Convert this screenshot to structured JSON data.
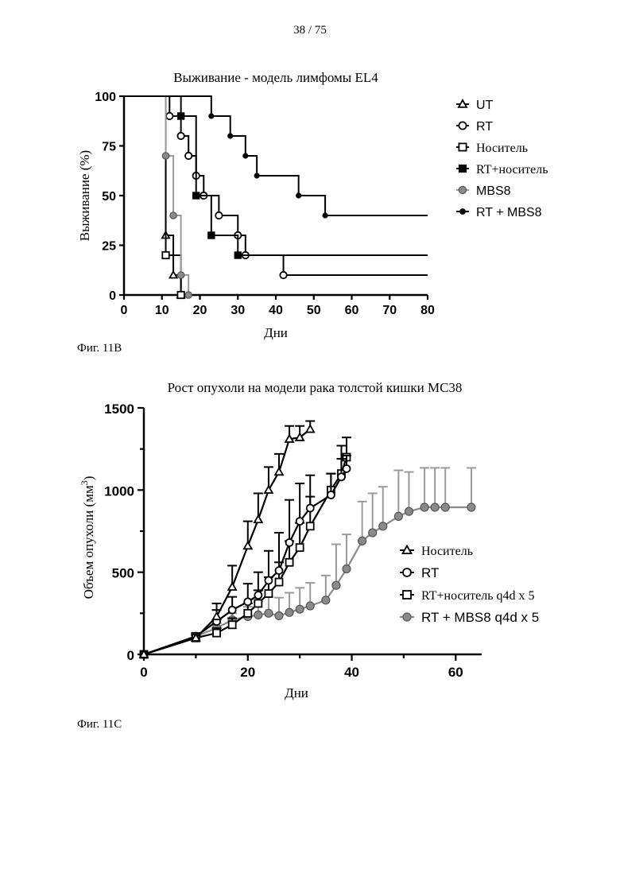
{
  "page_number": "38 / 75",
  "figures": {
    "fig11b_caption": "Фиг. 11B",
    "fig11c_caption": "Фиг. 11C"
  },
  "chart_data": [
    {
      "type": "line",
      "subtype": "kaplan-meier-step",
      "title": "Выживание - модель лимфомы EL4",
      "xlabel": "Дни",
      "ylabel": "Выживание (%)",
      "xlim": [
        0,
        80
      ],
      "ylim": [
        0,
        100
      ],
      "xticks": [
        0,
        10,
        20,
        30,
        40,
        50,
        60,
        70,
        80
      ],
      "yticks": [
        0,
        25,
        50,
        75,
        100
      ],
      "grid": false,
      "legend_position": "right",
      "series": [
        {
          "name": "UT",
          "marker": "triangle-open",
          "color": "#000000",
          "x": [
            0,
            11,
            13,
            15
          ],
          "y": [
            100,
            30,
            10,
            0
          ]
        },
        {
          "name": "RT",
          "marker": "circle-open",
          "color": "#000000",
          "x": [
            0,
            12,
            15,
            17,
            19,
            21,
            25,
            30,
            32,
            42,
            80
          ],
          "y": [
            100,
            90,
            80,
            70,
            60,
            50,
            40,
            30,
            20,
            10,
            10
          ]
        },
        {
          "name": "Носитель",
          "marker": "square-open",
          "color": "#000000",
          "x": [
            0,
            11,
            15
          ],
          "y": [
            100,
            20,
            0
          ]
        },
        {
          "name": "RT+носитель",
          "marker": "square-filled",
          "color": "#000000",
          "x": [
            0,
            15,
            19,
            23,
            30,
            80
          ],
          "y": [
            100,
            90,
            50,
            30,
            20,
            20
          ]
        },
        {
          "name": "MBS8",
          "marker": "circle-gray",
          "color": "#9a9a9a",
          "x": [
            0,
            11,
            13,
            15,
            17
          ],
          "y": [
            100,
            70,
            40,
            10,
            0
          ]
        },
        {
          "name": "RT + MBS8",
          "marker": "circle-filled",
          "color": "#000000",
          "x": [
            0,
            23,
            28,
            32,
            35,
            46,
            53,
            80
          ],
          "y": [
            100,
            90,
            80,
            70,
            60,
            50,
            40,
            40
          ]
        }
      ]
    },
    {
      "type": "line",
      "subtype": "errorbar",
      "title": "Рост опухоли на модели рака толстой кишки MC38",
      "xlabel": "Дни",
      "ylabel": "Объем опухоли (мм",
      "ylabel_sup": "3",
      "ylabel_close": ")",
      "xlim": [
        0,
        65
      ],
      "ylim": [
        0,
        1500
      ],
      "xticks": [
        0,
        20,
        40,
        60
      ],
      "yticks": [
        0,
        500,
        1000,
        1500
      ],
      "grid": false,
      "legend_position": "right",
      "series": [
        {
          "name": "Носитель",
          "marker": "triangle-open",
          "color": "#000000",
          "x": [
            0,
            10,
            14,
            17,
            20,
            22,
            24,
            26,
            28,
            30,
            32
          ],
          "y": [
            0,
            100,
            230,
            410,
            660,
            820,
            1000,
            1110,
            1310,
            1320,
            1370
          ],
          "err": [
            0,
            20,
            80,
            130,
            150,
            160,
            140,
            110,
            80,
            70,
            50
          ]
        },
        {
          "name": "RT",
          "marker": "circle-open",
          "color": "#000000",
          "x": [
            0,
            10,
            14,
            17,
            20,
            22,
            24,
            26,
            28,
            30,
            32,
            36,
            38,
            39
          ],
          "y": [
            0,
            110,
            200,
            270,
            320,
            360,
            450,
            510,
            680,
            810,
            890,
            970,
            1080,
            1130
          ],
          "err": [
            0,
            20,
            70,
            80,
            110,
            140,
            180,
            230,
            260,
            230,
            200,
            130,
            110,
            80
          ]
        },
        {
          "name": "RT+носитель q4d x 5",
          "marker": "square-open",
          "color": "#000000",
          "x": [
            0,
            10,
            14,
            17,
            20,
            22,
            24,
            26,
            28,
            30,
            32,
            36,
            38,
            39
          ],
          "y": [
            0,
            100,
            130,
            180,
            250,
            310,
            370,
            440,
            560,
            650,
            780,
            1000,
            1100,
            1200
          ],
          "err": [
            0,
            15,
            30,
            40,
            60,
            80,
            100,
            120,
            130,
            150,
            180,
            100,
            170,
            120
          ]
        },
        {
          "name": "RT + MBS8 q4d x 5",
          "marker": "circle-gray",
          "color": "#8a8a8a",
          "x": [
            0,
            10,
            14,
            17,
            20,
            22,
            24,
            26,
            28,
            30,
            32,
            35,
            37,
            39,
            42,
            44,
            46,
            49,
            51,
            54,
            56,
            58,
            63
          ],
          "y": [
            0,
            110,
            160,
            210,
            230,
            240,
            250,
            235,
            255,
            275,
            295,
            330,
            420,
            520,
            690,
            740,
            780,
            840,
            870,
            895,
            895,
            895,
            895
          ],
          "err": [
            0,
            10,
            30,
            40,
            60,
            80,
            100,
            110,
            120,
            130,
            140,
            150,
            250,
            210,
            240,
            240,
            240,
            280,
            240,
            240,
            240,
            240,
            240
          ]
        }
      ]
    }
  ]
}
